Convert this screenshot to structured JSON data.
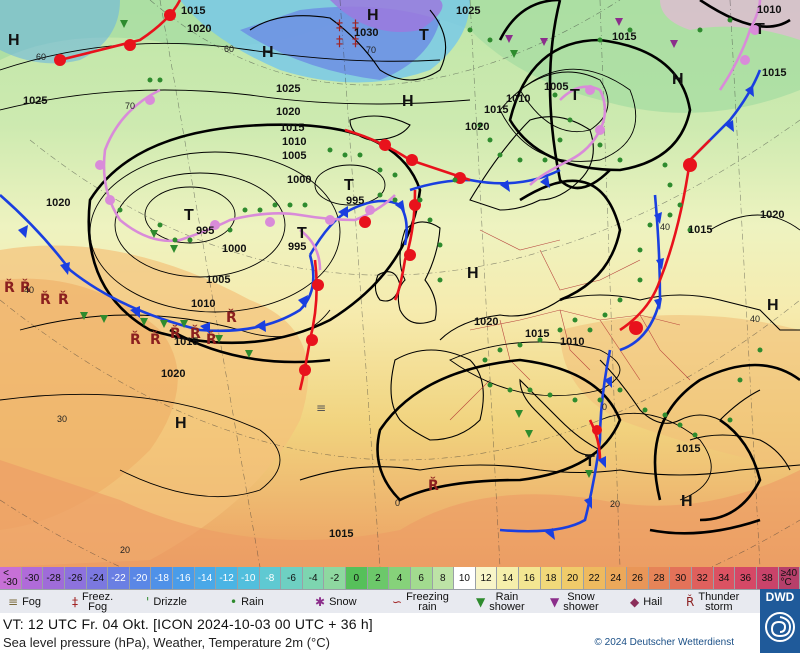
{
  "map": {
    "pressure_centers": [
      {
        "type": "H",
        "value": ""
      },
      {
        "type": "H",
        "value": ""
      },
      {
        "type": "H",
        "value": "1030"
      },
      {
        "type": "H",
        "value": ""
      },
      {
        "type": "T",
        "value": ""
      },
      {
        "type": "T",
        "value": ""
      },
      {
        "type": "T",
        "value": "995"
      },
      {
        "type": "T",
        "value": "995"
      },
      {
        "type": "T",
        "value": "995"
      },
      {
        "type": "H",
        "value": ""
      },
      {
        "type": "H",
        "value": ""
      },
      {
        "type": "T",
        "value": ""
      },
      {
        "type": "H",
        "value": ""
      },
      {
        "type": "T",
        "value": ""
      },
      {
        "type": "H",
        "value": ""
      },
      {
        "type": "H",
        "value": ""
      }
    ],
    "isobar_labels": [
      "1015",
      "1020",
      "1025",
      "1025",
      "1025",
      "1020",
      "1015",
      "1010",
      "1005",
      "1000",
      "1020",
      "1000",
      "1005",
      "1010",
      "1015",
      "1020",
      "1015",
      "1010",
      "1015",
      "1010",
      "1015",
      "1020",
      "1015",
      "1015",
      "1010",
      "1015",
      "1020",
      "1005",
      "1020",
      "1015"
    ],
    "temperature_labels": [
      "60",
      "60",
      "70",
      "70",
      "40",
      "30",
      "20",
      "40",
      "20",
      "0",
      "40",
      "0"
    ],
    "colors": {
      "cold_front": "#1a3fe0",
      "warm_front": "#e8121c",
      "occlusion": "#d98bd9",
      "isobar": "#000000"
    }
  },
  "scale": {
    "cells": [
      "<\n-30",
      "-30",
      "-28",
      "-26",
      "-24",
      "-22",
      "-20",
      "-18",
      "-16",
      "-14",
      "-12",
      "-10",
      "-8",
      "-6",
      "-4",
      "-2",
      "0",
      "2",
      "4",
      "6",
      "8",
      "10",
      "12",
      "14",
      "16",
      "18",
      "20",
      "22",
      "24",
      "26",
      "28",
      "30",
      "32",
      "34",
      "36",
      "38",
      "≥40\n°C"
    ],
    "colors": [
      "#c770d6",
      "#b06bd9",
      "#9f6cd9",
      "#8d72dd",
      "#7b78e0",
      "#6a7fe3",
      "#5a87e6",
      "#4f91e8",
      "#4a9ce9",
      "#49a8e8",
      "#4ab4e4",
      "#52bfdd",
      "#5fc9d2",
      "#6ed0c2",
      "#7dd5b0",
      "#8ed8a0",
      "#56c05a",
      "#6cc86a",
      "#86d27a",
      "#a2db8f",
      "#bde3a6",
      "#ffffff",
      "#f8f5c8",
      "#f5efab",
      "#f3e692",
      "#f1d97a",
      "#f0cb6a",
      "#eeba5f",
      "#eca85a",
      "#e99658",
      "#e68458",
      "#e37259",
      "#df605d",
      "#db5262",
      "#d54866",
      "#c9436a",
      "#b63f6a"
    ]
  },
  "legend": [
    {
      "icon": "fog",
      "symbol": "≡",
      "color": "#7a6a3a",
      "label": "Fog"
    },
    {
      "icon": "freezing-fog",
      "symbol": "‡",
      "color": "#a12323",
      "label": "Freez.\nFog"
    },
    {
      "icon": "drizzle",
      "symbol": "ꞌ",
      "color": "#2e8b2e",
      "label": "Drizzle"
    },
    {
      "icon": "rain",
      "symbol": "•",
      "color": "#2e8b2e",
      "label": "Rain"
    },
    {
      "icon": "snow",
      "symbol": "✱",
      "color": "#8b2e8b",
      "label": "Snow"
    },
    {
      "icon": "freezing-rain",
      "symbol": "∽",
      "color": "#a12323",
      "label": "Freezing\nrain"
    },
    {
      "icon": "rain-shower",
      "symbol": "▼",
      "color": "#2e8b2e",
      "label": "Rain\nshower"
    },
    {
      "icon": "snow-shower",
      "symbol": "▼",
      "color": "#8b2e8b",
      "label": "Snow\nshower"
    },
    {
      "icon": "hail",
      "symbol": "◆",
      "color": "#8b2e5a",
      "label": "Hail"
    },
    {
      "icon": "thunderstorm",
      "symbol": "Ř",
      "color": "#8b1f1f",
      "label": "Thunder\nstorm"
    }
  ],
  "footer": {
    "valid_time": "VT: 12 UTC Fr.  04 Okt. [ICON 2024-10-03  00 UTC + 36 h]",
    "description": "Sea level pressure (hPa), Weather, Temperature 2m (°C)",
    "copyright": "© 2024 Deutscher Wetterdienst",
    "logo_text": "DWD"
  }
}
